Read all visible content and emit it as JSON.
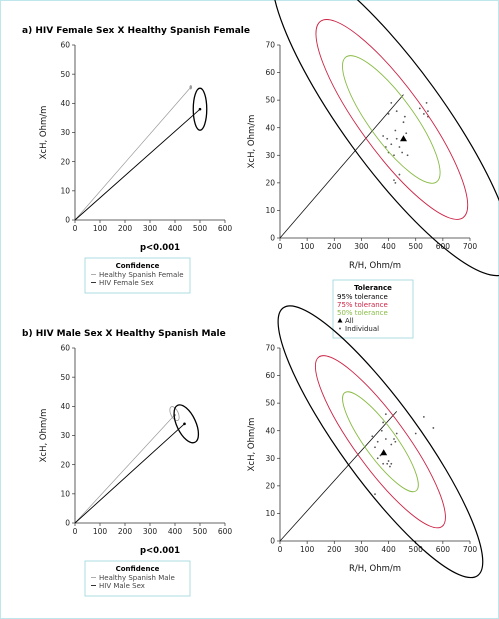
{
  "chart_data": [
    {
      "id": "a_left",
      "type": "line",
      "title": "a) HIV Female Sex X Healthy Spanish Female",
      "xlabel": "",
      "ylabel": "XcH, Ohm/m",
      "xlim": [
        0,
        600
      ],
      "ylim": [
        0,
        60
      ],
      "xticks": [
        0,
        100,
        200,
        300,
        400,
        500,
        600
      ],
      "yticks": [
        0,
        10,
        20,
        30,
        40,
        50,
        60
      ],
      "annotation": "p<0.001",
      "legend": {
        "title": "Confidence",
        "entries": [
          {
            "label": "Healthy Spanish Female",
            "color": "#999999"
          },
          {
            "label": "HIV Female Sex",
            "color": "#000000"
          }
        ]
      },
      "series": [
        {
          "name": "Healthy Spanish Female",
          "color": "#999999",
          "point": [
            463,
            45.5
          ],
          "ellipse": {
            "cx": 463,
            "cy": 45.5,
            "rx": 3,
            "ry": 0.6,
            "angle": 0
          }
        },
        {
          "name": "HIV Female Sex",
          "color": "#000000",
          "point": [
            500,
            38
          ],
          "ellipse": {
            "cx": 500,
            "cy": 38,
            "rx": 27,
            "ry": 7.2,
            "angle": 0
          }
        }
      ]
    },
    {
      "id": "a_right",
      "type": "scatter",
      "title": "",
      "xlabel": "R/H, Ohm/m",
      "ylabel": "XcH, Ohm/m",
      "xlim": [
        0,
        700
      ],
      "ylim": [
        0,
        70
      ],
      "xticks": [
        0,
        100,
        200,
        300,
        400,
        500,
        600,
        700
      ],
      "yticks": [
        0,
        10,
        20,
        30,
        40,
        50,
        60,
        70
      ],
      "legend": {
        "title": "Tolerance",
        "entries": [
          {
            "label": "95% tolerance",
            "color": "#000000"
          },
          {
            "label": "75% tolerance",
            "color": "#cc2244"
          },
          {
            "label": "50% tolerance",
            "color": "#88bb44"
          },
          {
            "label": "All",
            "color": "#000000",
            "marker": "triangle"
          },
          {
            "label": "Individual",
            "color": "#555555",
            "marker": "dot"
          }
        ]
      },
      "ellipses": [
        {
          "level": "95%",
          "cx": 415,
          "cy": 44,
          "rx": 185,
          "ry": 70,
          "angle": -36,
          "color": "#000000"
        },
        {
          "level": "75%",
          "cx": 412,
          "cy": 43,
          "rx": 118,
          "ry": 44,
          "angle": -36,
          "color": "#cc2244"
        },
        {
          "level": "50%",
          "cx": 410,
          "cy": 43,
          "rx": 82,
          "ry": 28,
          "angle": -36,
          "color": "#88bb44"
        }
      ],
      "line": [
        [
          0,
          0
        ],
        [
          455,
          52
        ]
      ],
      "all_point": [
        455,
        36
      ],
      "individual": [
        [
          380,
          37
        ],
        [
          390,
          33
        ],
        [
          395,
          36
        ],
        [
          400,
          31
        ],
        [
          410,
          34
        ],
        [
          420,
          30
        ],
        [
          425,
          39
        ],
        [
          430,
          36
        ],
        [
          440,
          33
        ],
        [
          450,
          31
        ],
        [
          455,
          42
        ],
        [
          460,
          44
        ],
        [
          465,
          38
        ],
        [
          470,
          30
        ],
        [
          420,
          21
        ],
        [
          425,
          20
        ],
        [
          440,
          23
        ],
        [
          515,
          47
        ],
        [
          530,
          45
        ],
        [
          545,
          46
        ],
        [
          540,
          49
        ],
        [
          545,
          44
        ],
        [
          400,
          45
        ],
        [
          410,
          49
        ],
        [
          430,
          46
        ]
      ]
    },
    {
      "id": "b_left",
      "type": "line",
      "title": "b) HIV Male Sex X Healthy Spanish Male",
      "xlabel": "",
      "ylabel": "XcH, Ohm/m",
      "xlim": [
        0,
        600
      ],
      "ylim": [
        0,
        60
      ],
      "xticks": [
        0,
        100,
        200,
        300,
        400,
        500,
        600
      ],
      "yticks": [
        0,
        10,
        20,
        30,
        40,
        50,
        60
      ],
      "annotation": "p<0.001",
      "legend": {
        "title": "Confidence",
        "entries": [
          {
            "label": "Healthy Spanish Male",
            "color": "#999999"
          },
          {
            "label": "HIV Male Sex",
            "color": "#000000"
          }
        ]
      },
      "series": [
        {
          "name": "Healthy Spanish Male",
          "color": "#999999",
          "point": [
            398,
            37
          ],
          "ellipse": {
            "cx": 398,
            "cy": 37.5,
            "rx": 15,
            "ry": 2.6,
            "angle": -25
          }
        },
        {
          "name": "HIV Male Sex",
          "color": "#000000",
          "point": [
            438,
            34
          ],
          "ellipse": {
            "cx": 445,
            "cy": 34,
            "rx": 38,
            "ry": 7,
            "angle": -25
          }
        }
      ]
    },
    {
      "id": "b_right",
      "type": "scatter",
      "title": "",
      "xlabel": "R/H, Ohm/m",
      "ylabel": "XcH, Ohm/m",
      "xlim": [
        0,
        700
      ],
      "ylim": [
        0,
        70
      ],
      "xticks": [
        0,
        100,
        200,
        300,
        400,
        500,
        600,
        700
      ],
      "yticks": [
        0,
        10,
        20,
        30,
        40,
        50,
        60,
        70
      ],
      "ellipses": [
        {
          "level": "95%",
          "cx": 370,
          "cy": 36,
          "rx": 145,
          "ry": 60,
          "angle": -36,
          "color": "#000000"
        },
        {
          "level": "75%",
          "cx": 370,
          "cy": 36,
          "rx": 95,
          "ry": 38,
          "angle": -36,
          "color": "#cc2244"
        },
        {
          "level": "50%",
          "cx": 370,
          "cy": 36,
          "rx": 58,
          "ry": 22,
          "angle": -36,
          "color": "#88bb44"
        }
      ],
      "line": [
        [
          0,
          0
        ],
        [
          430,
          47
        ]
      ],
      "all_point": [
        382,
        32
      ],
      "individual": [
        [
          340,
          38
        ],
        [
          350,
          34
        ],
        [
          360,
          36
        ],
        [
          370,
          31
        ],
        [
          375,
          40
        ],
        [
          380,
          43
        ],
        [
          390,
          37
        ],
        [
          395,
          28
        ],
        [
          400,
          29
        ],
        [
          405,
          27
        ],
        [
          410,
          28
        ],
        [
          420,
          37
        ],
        [
          425,
          36
        ],
        [
          430,
          39
        ],
        [
          350,
          17
        ],
        [
          500,
          39
        ],
        [
          530,
          45
        ],
        [
          565,
          41
        ],
        [
          380,
          28
        ],
        [
          360,
          30
        ],
        [
          390,
          46
        ],
        [
          410,
          35
        ]
      ]
    }
  ]
}
